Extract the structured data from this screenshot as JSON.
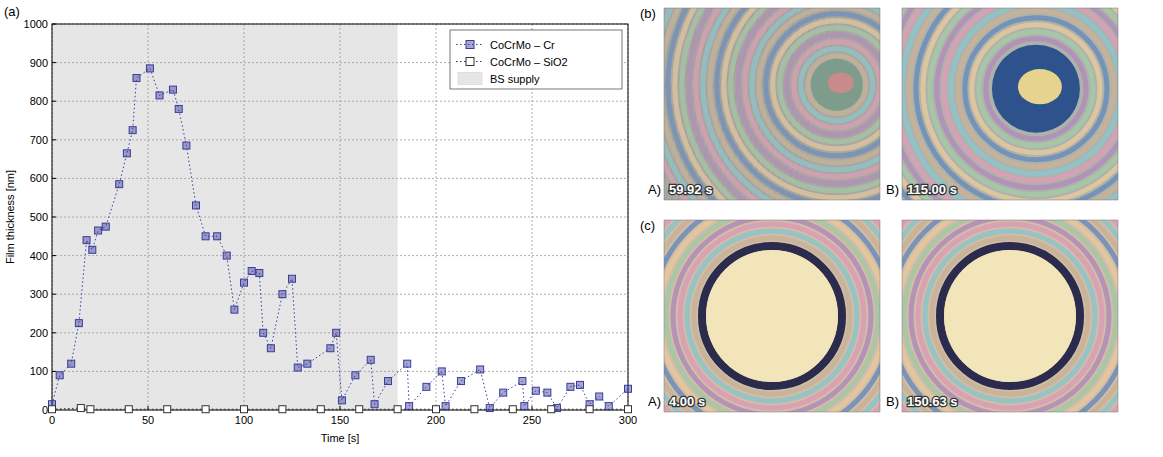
{
  "chart_panel_label": "(a)",
  "chart_data": {
    "type": "line",
    "x_label": "Time [s]",
    "y_label": "Film thickness [nm]",
    "xlim": [
      0,
      300
    ],
    "ylim": [
      0,
      1000
    ],
    "xticks": [
      0,
      50,
      100,
      150,
      200,
      250,
      300
    ],
    "yticks": [
      0,
      100,
      200,
      300,
      400,
      500,
      600,
      700,
      800,
      900,
      1000
    ],
    "grid": true,
    "legend": "upper right",
    "shaded_region": {
      "name": "BS supply",
      "x": [
        0,
        180
      ],
      "color": "#e6e6e6"
    },
    "series": [
      {
        "name": "CoCrMo – Cr",
        "color": "#3b3b9e",
        "marker": "square",
        "line_style": "dotted",
        "x": [
          0,
          4,
          10,
          14,
          18,
          21,
          24,
          28,
          35,
          39,
          42,
          44,
          51,
          56,
          63,
          66,
          70,
          75,
          80,
          86,
          91,
          95,
          100,
          104,
          108,
          110,
          114,
          120,
          125,
          128,
          133,
          145,
          148,
          151,
          158,
          166,
          168,
          175,
          185,
          186,
          195,
          203,
          205,
          213,
          223,
          228,
          235,
          245,
          246,
          252,
          258,
          263,
          270,
          275,
          280,
          285,
          290,
          300
        ],
        "values": [
          15,
          90,
          120,
          225,
          440,
          415,
          465,
          475,
          585,
          665,
          725,
          860,
          885,
          815,
          830,
          780,
          685,
          530,
          450,
          450,
          400,
          260,
          330,
          360,
          355,
          200,
          160,
          300,
          340,
          110,
          120,
          160,
          200,
          25,
          90,
          130,
          15,
          75,
          120,
          10,
          60,
          100,
          10,
          75,
          105,
          5,
          45,
          75,
          10,
          50,
          45,
          5,
          60,
          65,
          15,
          35,
          10,
          55
        ]
      },
      {
        "name": "CoCrMo – SiO2",
        "color": "#333333",
        "marker": "square-open",
        "line_style": "dotted",
        "x": [
          0,
          15,
          20,
          40,
          60,
          80,
          100,
          120,
          140,
          160,
          180,
          200,
          220,
          240,
          260,
          280,
          300
        ],
        "values": [
          2,
          5,
          2,
          2,
          2,
          2,
          2,
          2,
          2,
          2,
          2,
          2,
          2,
          2,
          2,
          2,
          2
        ]
      }
    ]
  },
  "image_panels": [
    {
      "label": "(b)",
      "images": [
        {
          "letter": "A)",
          "time": "59.92 s"
        },
        {
          "letter": "B)",
          "time": "115.00 s"
        }
      ]
    },
    {
      "label": "(c)",
      "images": [
        {
          "letter": "A)",
          "time": "4.00 s"
        },
        {
          "letter": "B)",
          "time": "150.63 s"
        }
      ]
    }
  ]
}
